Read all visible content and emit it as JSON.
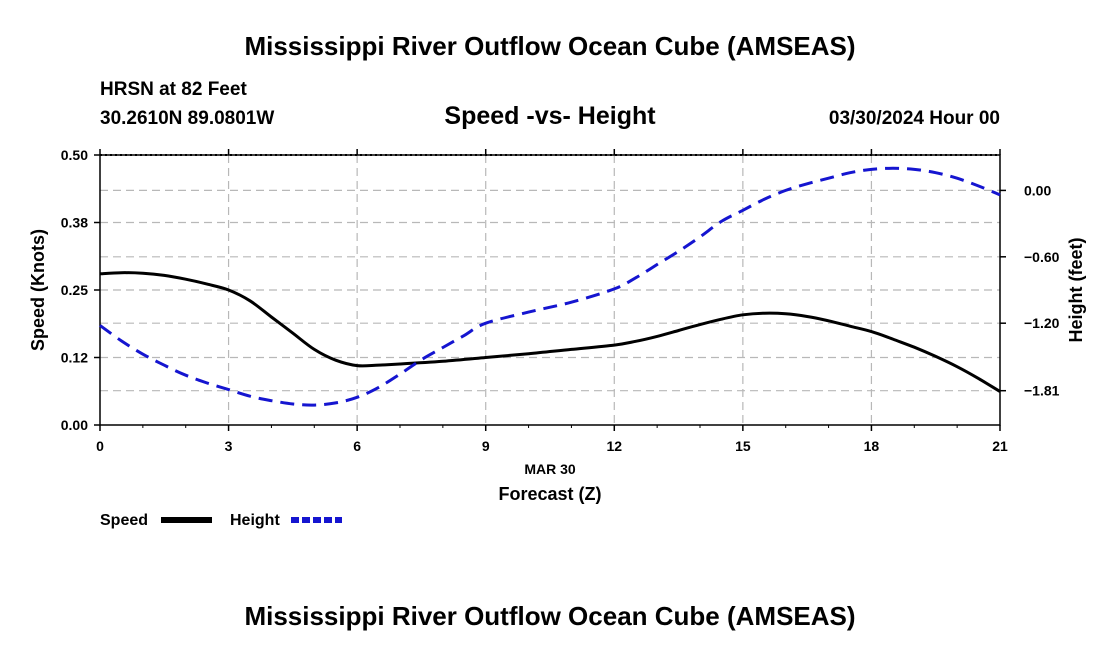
{
  "title": "Mississippi River Outflow Ocean Cube (AMSEAS)",
  "footer_title": "Mississippi River Outflow Ocean Cube (AMSEAS)",
  "station": {
    "line1": "HRSN at 82 Feet",
    "line2": "30.2610N  89.0801W"
  },
  "timestamp": "03/30/2024 Hour 00",
  "chart_data": {
    "type": "line",
    "title": "Speed -vs- Height",
    "xlabel_date": "MAR 30",
    "xlabel": "Forecast (Z)",
    "ylabel_left": "Speed (Knots)",
    "ylabel_right": "Height (feet)",
    "xlim": [
      0,
      21
    ],
    "ylim_left": [
      0,
      0.5
    ],
    "ylim_right": [
      -2.12,
      0.32
    ],
    "x_ticks": [
      "0",
      "3",
      "6",
      "9",
      "12",
      "15",
      "18",
      "21"
    ],
    "x_tick_values": [
      0,
      3,
      6,
      9,
      12,
      15,
      18,
      21
    ],
    "y_left_ticks": [
      "0.00",
      "0.12",
      "0.25",
      "0.38",
      "0.50"
    ],
    "y_left_tick_values": [
      0,
      0.125,
      0.25,
      0.375,
      0.5
    ],
    "y_right_ticks": [
      "0.00",
      "−0.60",
      "−1.20",
      "−1.81"
    ],
    "y_right_tick_values": [
      0,
      -0.6,
      -1.2,
      -1.81
    ],
    "grid": true,
    "legend": [
      {
        "name": "Speed",
        "color": "#000000",
        "style": "solid"
      },
      {
        "name": "Height",
        "color": "#1515d0",
        "style": "dashed"
      }
    ],
    "series": [
      {
        "name": "Speed",
        "axis": "left",
        "color": "#000000",
        "x": [
          0,
          0.5,
          1,
          1.5,
          2,
          2.5,
          3,
          3.5,
          4,
          4.5,
          5,
          5.5,
          6,
          6.5,
          7,
          8,
          9,
          10,
          11,
          12,
          12.5,
          13,
          13.5,
          14,
          14.5,
          15,
          15.5,
          16,
          16.5,
          17,
          17.5,
          18,
          18.5,
          19,
          19.5,
          20,
          20.5,
          21
        ],
        "values": [
          0.28,
          0.282,
          0.281,
          0.277,
          0.27,
          0.261,
          0.25,
          0.23,
          0.2,
          0.17,
          0.14,
          0.12,
          0.11,
          0.111,
          0.113,
          0.118,
          0.125,
          0.132,
          0.14,
          0.148,
          0.155,
          0.164,
          0.175,
          0.186,
          0.196,
          0.204,
          0.207,
          0.206,
          0.201,
          0.193,
          0.183,
          0.173,
          0.159,
          0.144,
          0.127,
          0.108,
          0.086,
          0.062
        ]
      },
      {
        "name": "Height",
        "axis": "right",
        "color": "#1515d0",
        "x": [
          0,
          0.5,
          1,
          1.5,
          2,
          2.5,
          3,
          3.5,
          4,
          4.5,
          5,
          5.5,
          6,
          6.5,
          7,
          7.5,
          8,
          8.5,
          9,
          10,
          11,
          12,
          12.5,
          13,
          13.5,
          14,
          14.5,
          15,
          15.5,
          16,
          16.5,
          17,
          17.5,
          18,
          18.5,
          19,
          19.5,
          20,
          20.5,
          21
        ],
        "values": [
          -1.22,
          -1.36,
          -1.48,
          -1.58,
          -1.67,
          -1.74,
          -1.8,
          -1.86,
          -1.9,
          -1.93,
          -1.94,
          -1.92,
          -1.87,
          -1.78,
          -1.66,
          -1.53,
          -1.42,
          -1.31,
          -1.2,
          -1.1,
          -1.01,
          -0.89,
          -0.79,
          -0.67,
          -0.55,
          -0.42,
          -0.28,
          -0.18,
          -0.08,
          0,
          0.06,
          0.11,
          0.16,
          0.19,
          0.2,
          0.19,
          0.16,
          0.11,
          0.04,
          -0.04
        ]
      }
    ]
  }
}
